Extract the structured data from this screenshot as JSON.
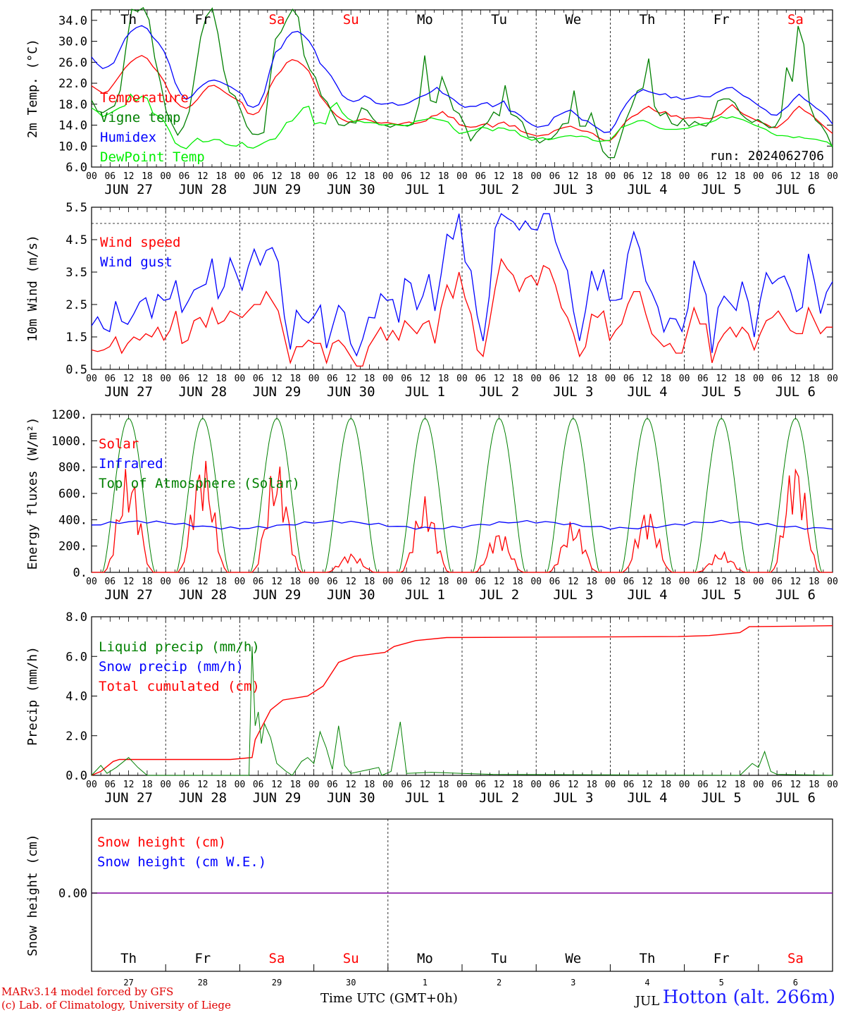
{
  "chart_data": [
    {
      "type": "line",
      "ylabel": "2m Temp. (°C)",
      "ylim": [
        6,
        36
      ],
      "yticks": [
        "6.0",
        "10.0",
        "14.0",
        "18.0",
        "22.0",
        "26.0",
        "30.0",
        "34.0"
      ],
      "day_labels": [
        "Th",
        "Fr",
        "Sa",
        "Su",
        "Mo",
        "Tu",
        "We",
        "Th",
        "Fr",
        "Sa"
      ],
      "run_label": "run: 2024062706",
      "series": [
        {
          "name": "Temperature",
          "color": "#ff0000",
          "values": [
            21.5,
            20.8,
            20.1,
            20.5,
            21.9,
            23.4,
            24.9,
            26.0,
            26.8,
            27.3,
            26.7,
            25.2,
            24.0,
            22.4,
            20.1,
            18.6,
            17.6,
            17.2,
            17.8,
            18.9,
            20.3,
            21.4,
            21.6,
            21.0,
            20.2,
            19.5,
            18.9,
            18.3,
            16.3,
            16.0,
            16.5,
            18.4,
            21.3,
            23.2,
            24.3,
            25.9,
            26.5,
            26.2,
            25.4,
            24.3,
            22.0,
            19.6,
            18.3,
            16.9,
            15.8,
            15.1,
            14.6,
            14.7,
            15.0,
            15.2,
            14.9,
            14.5,
            14.4,
            14.5,
            14.3,
            14.1,
            14.4,
            14.6,
            14.3,
            14.5,
            14.8,
            15.7,
            15.9,
            16.6,
            15.6,
            15.4,
            14.1,
            13.8,
            13.6,
            13.7,
            14.1,
            14.3,
            13.6,
            14.3,
            14.6,
            13.8,
            13.9,
            12.9,
            12.5,
            12.2,
            11.9,
            12.1,
            12.2,
            12.9,
            13.3,
            13.6,
            13.8,
            13.3,
            12.9,
            12.8,
            12.4,
            11.6,
            11.1,
            11.0,
            11.9,
            13.5,
            14.8,
            15.6,
            16.1,
            17.0,
            17.6,
            16.8,
            16.3,
            16.6,
            15.7,
            15.8,
            15.2,
            15.4,
            15.4,
            15.5,
            15.3,
            15.2,
            15.6,
            16.1,
            17.1,
            17.9,
            16.9,
            16.1,
            15.6,
            15.1,
            14.6,
            14.2,
            13.6,
            13.5,
            14.3,
            15.2,
            16.6,
            17.6,
            16.7,
            16.1,
            15.2,
            14.2,
            13.3,
            12.4
          ]
        },
        {
          "name": "Vigne temp",
          "color": "#008000",
          "values": [
            18.8,
            16.7,
            16.4,
            17.1,
            17.7,
            20.7,
            28.8,
            36.1,
            35.7,
            36.4,
            34.1,
            26.8,
            22.1,
            16.6,
            14.2,
            12.1,
            13.7,
            16.6,
            23.7,
            30.8,
            34.8,
            36.3,
            31.5,
            24.5,
            20.3,
            19.5,
            16.8,
            13.8,
            12.3,
            12.2,
            12.6,
            22.1,
            30.4,
            31.8,
            34.2,
            36.1,
            34.6,
            27.3,
            24.6,
            23.1,
            19.6,
            18.4,
            16.2,
            14.1,
            13.9,
            14.6,
            14.4,
            17.3,
            16.8,
            15.2,
            14.1,
            14.0,
            13.6,
            14.1,
            14.0,
            13.8,
            14.2,
            18.1,
            27.3,
            18.7,
            18.3,
            23.2,
            20.3,
            16.9,
            16.2,
            14.0,
            11.0,
            12.6,
            13.6,
            14.6,
            16.5,
            15.8,
            21.6,
            16.1,
            15.6,
            14.6,
            11.7,
            11.7,
            10.6,
            11.3,
            11.4,
            12.5,
            14.2,
            14.4,
            20.6,
            13.8,
            13.8,
            16.3,
            12.6,
            9.0,
            7.8,
            7.8,
            11.3,
            14.9,
            17.5,
            20.5,
            21.1,
            26.7,
            17.6,
            15.8,
            16.4,
            14.3,
            13.9,
            15.2,
            13.8,
            14.7,
            14.1,
            13.8,
            15.1,
            18.6,
            19.0,
            19.0,
            18.2,
            16.2,
            15.2,
            14.5,
            15.1,
            14.3,
            13.5,
            13.7,
            15.6,
            25.0,
            22.3,
            32.9,
            29.4,
            17.9,
            15.0,
            14.0,
            12.3,
            9.7
          ]
        },
        {
          "name": "Humidex",
          "color": "#0000ff",
          "values": [
            27.0,
            25.7,
            24.8,
            25.2,
            25.9,
            28.2,
            30.5,
            31.8,
            32.6,
            33.0,
            32.4,
            30.8,
            29.7,
            28.1,
            25.6,
            22.1,
            20.0,
            18.9,
            19.5,
            20.8,
            21.7,
            22.4,
            22.6,
            22.3,
            21.8,
            21.3,
            20.6,
            19.9,
            17.8,
            17.4,
            17.9,
            20.2,
            24.4,
            27.9,
            28.7,
            30.6,
            31.7,
            31.9,
            31.2,
            30.1,
            28.4,
            25.8,
            24.7,
            23.4,
            21.6,
            19.7,
            18.9,
            18.5,
            18.8,
            19.6,
            19.1,
            18.2,
            18.0,
            18.1,
            18.3,
            17.8,
            17.9,
            18.3,
            18.9,
            19.4,
            19.8,
            20.4,
            21.2,
            20.1,
            19.6,
            18.9,
            18.0,
            17.4,
            17.6,
            17.6,
            18.1,
            18.3,
            17.5,
            18.0,
            18.6,
            16.7,
            16.5,
            15.8,
            14.8,
            14.1,
            13.6,
            13.8,
            14.0,
            15.5,
            16.0,
            16.5,
            16.9,
            16.0,
            15.0,
            14.8,
            14.0,
            13.3,
            12.6,
            12.7,
            14.2,
            16.4,
            18.1,
            19.4,
            20.2,
            20.8,
            20.4,
            20.1,
            19.8,
            20.0,
            19.2,
            19.4,
            18.9,
            19.1,
            19.3,
            19.6,
            19.4,
            19.4,
            20.1,
            20.6,
            21.1,
            21.2,
            20.4,
            19.6,
            19.1,
            18.3,
            17.5,
            16.9,
            16.0,
            15.9,
            16.8,
            17.6,
            18.9,
            19.9,
            18.9,
            18.2,
            17.3,
            16.6,
            15.6,
            14.2
          ]
        },
        {
          "name": "DewPoint Temp",
          "color": "#00ee00",
          "values": [
            17.3,
            16.6,
            15.6,
            16.1,
            16.7,
            17.3,
            17.7,
            19.9,
            18.6,
            19.5,
            19.1,
            16.3,
            15.7,
            14.8,
            12.9,
            10.6,
            9.9,
            9.5,
            10.6,
            11.5,
            10.8,
            10.9,
            11.3,
            11.2,
            10.4,
            10.1,
            10.0,
            10.7,
            9.8,
            9.6,
            10.1,
            10.7,
            11.2,
            11.4,
            12.8,
            14.5,
            14.8,
            16.0,
            17.3,
            17.6,
            14.2,
            14.5,
            14.2,
            17.4,
            18.3,
            16.4,
            15.3,
            14.7,
            14.8,
            14.5,
            14.5,
            14.4,
            14.0,
            14.1,
            14.2,
            14.0,
            13.9,
            14.0,
            14.7,
            14.9,
            15.1,
            15.4,
            15.1,
            14.9,
            14.6,
            13.3,
            12.4,
            12.6,
            12.9,
            13.1,
            13.6,
            13.4,
            12.9,
            13.5,
            13.4,
            13.0,
            13.0,
            12.0,
            11.6,
            11.1,
            11.4,
            11.6,
            11.2,
            11.4,
            11.7,
            11.9,
            12.0,
            11.8,
            11.9,
            11.7,
            11.1,
            10.9,
            11.0,
            11.1,
            12.2,
            13.5,
            13.9,
            14.3,
            14.8,
            14.9,
            14.5,
            13.9,
            13.4,
            13.2,
            13.2,
            13.2,
            13.3,
            13.4,
            13.8,
            14.1,
            14.3,
            14.5,
            14.9,
            15.6,
            15.3,
            15.6,
            15.3,
            15.0,
            14.5,
            14.0,
            13.6,
            13.2,
            12.5,
            12.0,
            12.0,
            11.9,
            11.6,
            11.8,
            11.5,
            11.4,
            11.3,
            11.0,
            10.8,
            10.0
          ]
        }
      ]
    },
    {
      "type": "line",
      "ylabel": "10m Wind (m/s)",
      "ylim": [
        0.5,
        5.5
      ],
      "yticks": [
        "0.5",
        "1.5",
        "2.5",
        "3.5",
        "4.5",
        "5.5"
      ],
      "ref_line": 5.0,
      "series": [
        {
          "name": "Wind speed",
          "color": "#ff0000",
          "values": [
            1.1,
            1.05,
            1.1,
            1.2,
            1.5,
            1.0,
            1.3,
            1.5,
            1.4,
            1.6,
            1.5,
            1.8,
            1.4,
            1.7,
            2.3,
            1.3,
            1.4,
            2.0,
            2.1,
            1.8,
            2.4,
            1.9,
            2.0,
            2.3,
            2.2,
            2.1,
            2.3,
            2.5,
            2.5,
            2.9,
            2.6,
            2.3,
            1.5,
            0.7,
            1.2,
            1.2,
            1.4,
            1.3,
            1.3,
            0.7,
            1.3,
            1.4,
            1.2,
            0.9,
            0.6,
            0.6,
            1.2,
            1.5,
            1.8,
            1.4,
            1.7,
            1.4,
            2.0,
            1.8,
            1.6,
            1.9,
            2.0,
            1.3,
            2.4,
            3.1,
            2.7,
            3.5,
            2.7,
            2.2,
            1.1,
            0.9,
            1.9,
            3.0,
            3.9,
            3.6,
            3.4,
            2.9,
            3.3,
            3.4,
            3.1,
            3.7,
            3.6,
            3.1,
            2.4,
            2.1,
            1.6,
            0.9,
            1.2,
            2.2,
            2.1,
            2.3,
            1.4,
            1.7,
            1.9,
            2.5,
            2.9,
            2.9,
            2.2,
            1.6,
            1.4,
            1.2,
            1.3,
            1.0,
            1.0,
            1.7,
            2.4,
            1.9,
            1.9,
            0.7,
            1.3,
            1.6,
            1.8,
            1.5,
            1.8,
            1.6,
            1.1,
            1.6,
            2.0,
            2.1,
            2.3,
            2.0,
            1.7,
            1.6,
            1.6,
            2.4,
            2.0,
            1.6,
            1.8,
            1.8
          ]
        }
      ]
    }
  ]
}
